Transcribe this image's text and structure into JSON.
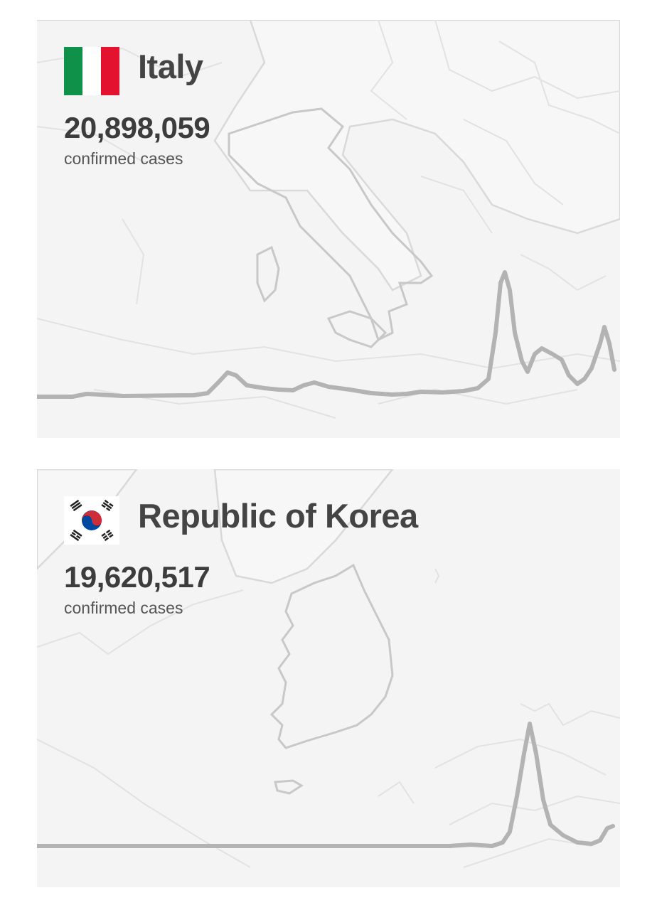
{
  "cards": [
    {
      "country": "Italy",
      "flag": "italy-flag-icon",
      "confirmed_cases": "20,898,059",
      "cases_label": "confirmed cases",
      "colors": {
        "trend": "#b3b3b3",
        "flag_green": "#0f9149",
        "flag_white": "#ffffff",
        "flag_red": "#e3122f"
      }
    },
    {
      "country": "Republic of Korea",
      "flag": "south-korea-flag-icon",
      "confirmed_cases": "19,620,517",
      "cases_label": "confirmed cases",
      "colors": {
        "trend": "#b3b3b3",
        "taeguk_red": "#cd2e3a",
        "taeguk_blue": "#0047a0",
        "trigram": "#222222"
      }
    }
  ]
}
